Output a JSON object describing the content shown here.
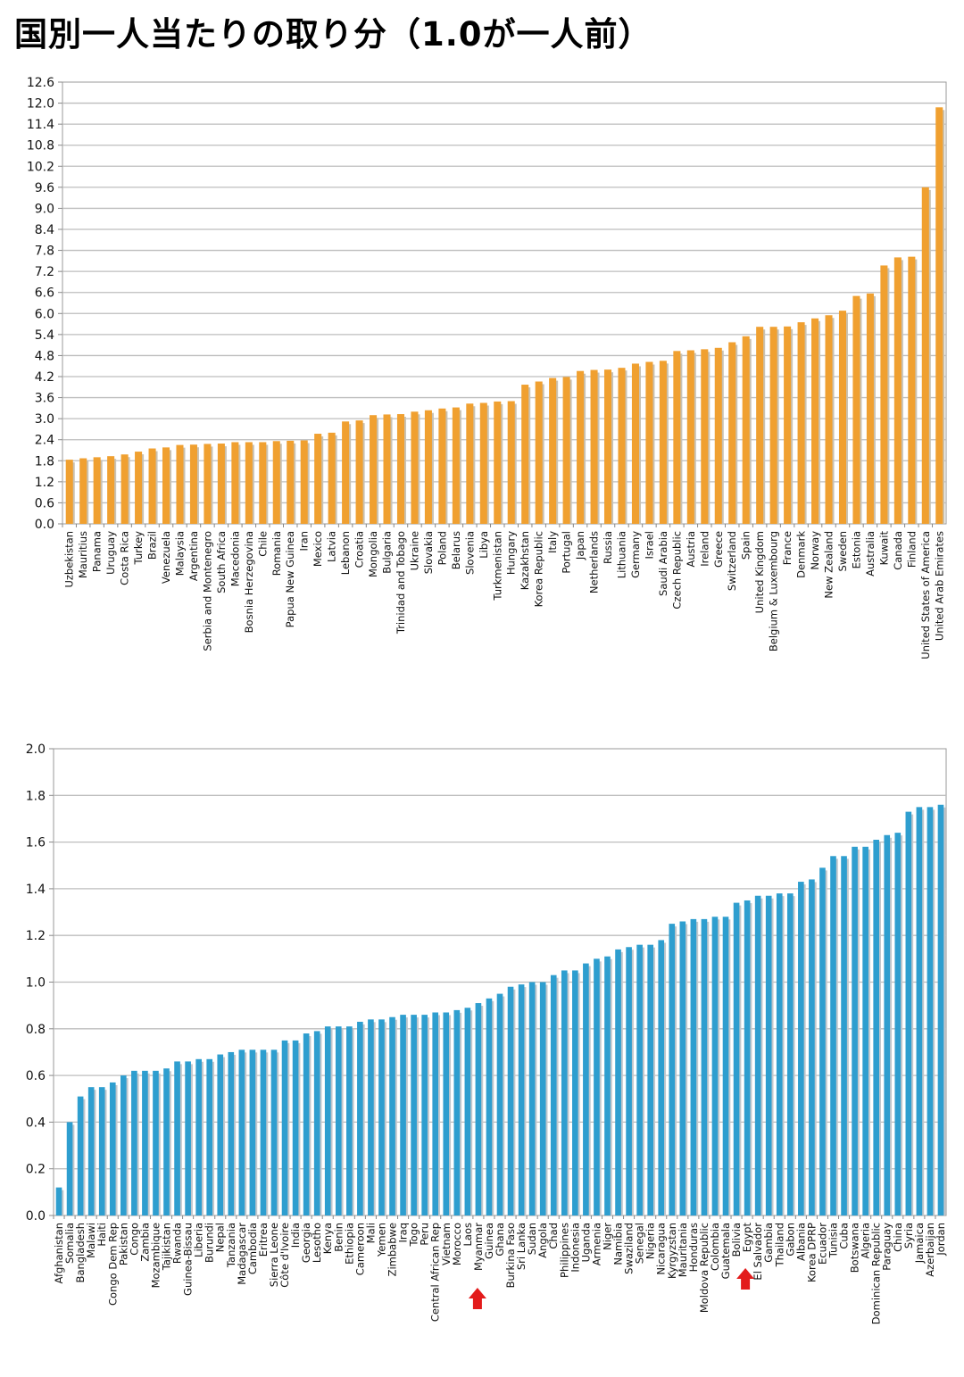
{
  "title": "国別一人当たりの取り分（1.0が一人前）",
  "chart_data": [
    {
      "id": "top",
      "type": "bar",
      "title": "",
      "xlabel": "",
      "ylabel": "",
      "ylim": [
        0,
        12.6
      ],
      "yticks": [
        "0.0",
        "0.6",
        "1.2",
        "1.8",
        "2.4",
        "3.0",
        "3.6",
        "4.2",
        "4.8",
        "5.4",
        "6.0",
        "6.6",
        "7.2",
        "7.8",
        "8.4",
        "9.0",
        "9.6",
        "10.2",
        "10.8",
        "11.4",
        "12.0",
        "12.6"
      ],
      "grid": true,
      "color": "#F0A030",
      "shadow_color": "#C9C2B3",
      "categories": [
        "Uzbekistan",
        "Mauritius",
        "Panama",
        "Uruguay",
        "Costa Rica",
        "Turkey",
        "Brazil",
        "Venezuela",
        "Malaysia",
        "Argentina",
        "Serbia and Montenegro",
        "South Africa",
        "Macedonia",
        "Bosnia Herzegovina",
        "Chile",
        "Romania",
        "Papua New Guinea",
        "Iran",
        "Mexico",
        "Latvia",
        "Lebanon",
        "Croatia",
        "Mongolia",
        "Bulgaria",
        "Trinidad and Tobago",
        "Ukraine",
        "Slovakia",
        "Poland",
        "Belarus",
        "Slovenia",
        "Libya",
        "Turkmenistan",
        "Hungary",
        "Kazakhstan",
        "Korea Republic",
        "Italy",
        "Portugal",
        "Japan",
        "Netherlands",
        "Russia",
        "Lithuania",
        "Germany",
        "Israel",
        "Saudi Arabia",
        "Czech Republic",
        "Austria",
        "Ireland",
        "Greece",
        "Switzerland",
        "Spain",
        "United Kingdom",
        "Belgium & Luxembourg",
        "France",
        "Denmark",
        "Norway",
        "New Zealand",
        "Sweden",
        "Estonia",
        "Australia",
        "Kuwait",
        "Canada",
        "Finland",
        "United States of America",
        "United Arab Emirates"
      ],
      "values": [
        1.83,
        1.87,
        1.9,
        1.93,
        1.98,
        2.06,
        2.15,
        2.18,
        2.25,
        2.26,
        2.28,
        2.29,
        2.33,
        2.33,
        2.33,
        2.36,
        2.37,
        2.38,
        2.57,
        2.6,
        2.92,
        2.95,
        3.1,
        3.12,
        3.13,
        3.2,
        3.24,
        3.29,
        3.32,
        3.43,
        3.45,
        3.49,
        3.5,
        3.97,
        4.06,
        4.16,
        4.19,
        4.36,
        4.39,
        4.4,
        4.45,
        4.57,
        4.62,
        4.65,
        4.93,
        4.95,
        4.98,
        5.02,
        5.18,
        5.35,
        5.62,
        5.62,
        5.63,
        5.75,
        5.86,
        5.95,
        6.08,
        6.5,
        6.57,
        7.37,
        7.6,
        7.62,
        9.6,
        11.88
      ]
    },
    {
      "id": "bottom",
      "type": "bar",
      "title": "",
      "xlabel": "",
      "ylabel": "",
      "ylim": [
        0,
        2.0
      ],
      "yticks": [
        "0.0",
        "0.2",
        "0.4",
        "0.6",
        "0.8",
        "1.0",
        "1.2",
        "1.4",
        "1.6",
        "1.8",
        "2.0"
      ],
      "grid": true,
      "color": "#2E9ECF",
      "shadow_color": "#C2C7CC",
      "categories": [
        "Afghanistan",
        "Somalia",
        "Bangladesh",
        "Malawi",
        "Haiti",
        "Congo Dem Rep",
        "Pakistan",
        "Congo",
        "Zambia",
        "Mozambique",
        "Tajikistan",
        "Rwanda",
        "Guinea-Bissau",
        "Liberia",
        "Burundi",
        "Nepal",
        "Tanzania",
        "Madagascar",
        "Cambodia",
        "Eritrea",
        "Sierra Leone",
        "Côte d'Ivoire",
        "India",
        "Georgia",
        "Lesotho",
        "Kenya",
        "Benin",
        "Ethiopia",
        "Cameroon",
        "Mali",
        "Yemen",
        "Zimbabwe",
        "Iraq",
        "Togo",
        "Peru",
        "Central African Rep",
        "Vietnam",
        "Morocco",
        "Laos",
        "Myanmar",
        "Guinea",
        "Ghana",
        "Burkina Faso",
        "Sri Lanka",
        "Sudan",
        "Angola",
        "Chad",
        "Philippines",
        "Indonesia",
        "Uganda",
        "Armenia",
        "Niger",
        "Namibia",
        "Swaziland",
        "Senegal",
        "Nigeria",
        "Nicaragua",
        "Kyrgyzstan",
        "Mauritania",
        "Honduras",
        "Moldova Republic",
        "Colombia",
        "Guatemala",
        "Bolivia",
        "Egypt",
        "El Salvador",
        "Gambia",
        "Thailand",
        "Gabon",
        "Albania",
        "Korea DPRP",
        "Ecuador",
        "Tunisia",
        "Cuba",
        "Botswana",
        "Algeria",
        "Dominican Republic",
        "Paraguay",
        "China",
        "Syria",
        "Jamaica",
        "Azerbaijan",
        "Jordan"
      ],
      "values": [
        0.12,
        0.4,
        0.51,
        0.55,
        0.55,
        0.57,
        0.6,
        0.62,
        0.62,
        0.62,
        0.63,
        0.66,
        0.66,
        0.67,
        0.67,
        0.69,
        0.7,
        0.71,
        0.71,
        0.71,
        0.71,
        0.75,
        0.75,
        0.78,
        0.79,
        0.81,
        0.81,
        0.81,
        0.83,
        0.84,
        0.84,
        0.85,
        0.86,
        0.86,
        0.86,
        0.87,
        0.87,
        0.88,
        0.89,
        0.91,
        0.93,
        0.95,
        0.98,
        0.99,
        1.0,
        1.0,
        1.03,
        1.05,
        1.05,
        1.08,
        1.1,
        1.11,
        1.14,
        1.15,
        1.16,
        1.16,
        1.18,
        1.25,
        1.26,
        1.27,
        1.27,
        1.28,
        1.28,
        1.34,
        1.35,
        1.37,
        1.37,
        1.38,
        1.38,
        1.43,
        1.44,
        1.49,
        1.54,
        1.54,
        1.58,
        1.58,
        1.61,
        1.63,
        1.64,
        1.73,
        1.75,
        1.75,
        1.76
      ],
      "annotations": [
        {
          "type": "arrow",
          "points_to": "Myanmar",
          "color": "#E31B1B"
        },
        {
          "type": "arrow",
          "points_to": "Egypt",
          "color": "#E31B1B"
        }
      ]
    }
  ]
}
